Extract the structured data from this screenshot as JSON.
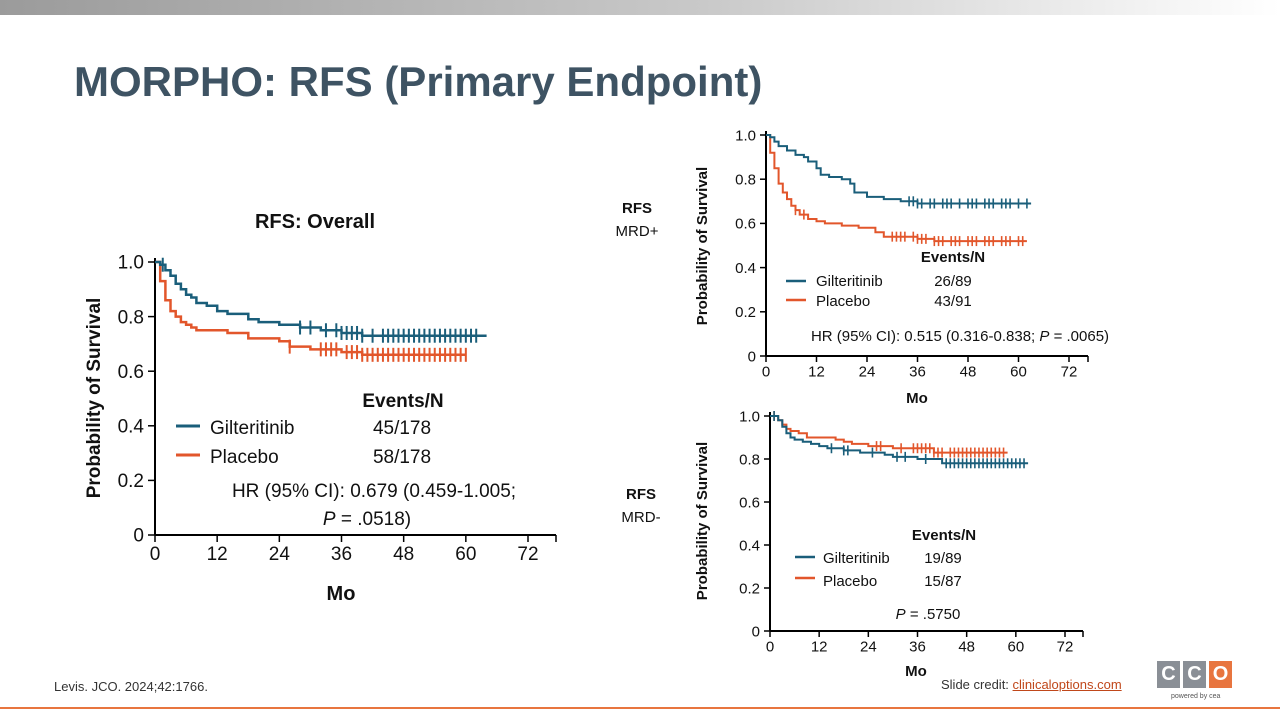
{
  "header": {
    "title": "MORPHO: RFS (Primary Endpoint)"
  },
  "footer": {
    "citation": "Levis. JCO. 2024;42:1766.",
    "credit_prefix": "Slide credit: ",
    "credit_link": "clinicaloptions.com",
    "logo_letters": [
      "C",
      "C",
      "O"
    ],
    "logo_tagline": "powered by cea"
  },
  "colors": {
    "gilteritinib": "#1a5e7a",
    "placebo": "#e2562b",
    "title": "#3e5363",
    "logo_box": "#8a8f96",
    "logo_accent": "#e8753f"
  },
  "side_labels": {
    "mrd_pos": {
      "line1": "RFS",
      "line2": "MRD+"
    },
    "mrd_neg": {
      "line1": "RFS",
      "line2": "MRD-"
    }
  },
  "chart_data": [
    {
      "type": "line",
      "title": "RFS: Overall",
      "xlabel": "Mo",
      "ylabel": "Probability of Survival",
      "xlim": [
        0,
        72
      ],
      "ylim": [
        0,
        1.0
      ],
      "xticks": [
        "0",
        "12",
        "24",
        "36",
        "48",
        "60",
        "72"
      ],
      "yticks": [
        "0",
        "0.2",
        "0.4",
        "0.6",
        "0.8",
        "1.0"
      ],
      "legend_title": "Events/N",
      "series": [
        {
          "name": "Gilteritinib",
          "events": "45/178",
          "x": [
            0,
            1,
            2,
            3,
            4,
            5,
            6,
            7,
            8,
            10,
            12,
            14,
            18,
            20,
            24,
            28,
            32,
            36,
            40,
            44,
            50,
            56,
            64
          ],
          "y": [
            1.0,
            0.99,
            0.97,
            0.95,
            0.92,
            0.9,
            0.88,
            0.87,
            0.85,
            0.84,
            0.82,
            0.81,
            0.79,
            0.78,
            0.77,
            0.76,
            0.75,
            0.74,
            0.73,
            0.73,
            0.73,
            0.73,
            0.73
          ],
          "censor_x": [
            1.5,
            28,
            30,
            33,
            35,
            36,
            37,
            38,
            39,
            40,
            42,
            44,
            45,
            46,
            47,
            48,
            49,
            50,
            51,
            52,
            53,
            54,
            55,
            56,
            57,
            58,
            59,
            60,
            61,
            62
          ]
        },
        {
          "name": "Placebo",
          "events": "58/178",
          "x": [
            0,
            1,
            2,
            3,
            4,
            5,
            6,
            7,
            8,
            10,
            14,
            18,
            24,
            26,
            30,
            36,
            40,
            44,
            50,
            56,
            60
          ],
          "y": [
            1.0,
            0.93,
            0.86,
            0.82,
            0.8,
            0.78,
            0.77,
            0.76,
            0.75,
            0.75,
            0.74,
            0.72,
            0.71,
            0.69,
            0.68,
            0.67,
            0.66,
            0.66,
            0.66,
            0.66,
            0.66
          ],
          "censor_x": [
            26,
            32,
            33,
            34,
            35,
            37,
            38,
            39,
            40,
            41,
            42,
            43,
            44,
            45,
            46,
            47,
            48,
            49,
            50,
            51,
            52,
            53,
            54,
            55,
            56,
            57,
            58,
            59,
            60
          ]
        }
      ],
      "annotation": {
        "hr_prefix": "HR (95% CI): 0.679 (0.459-1.005;",
        "p_label": "P",
        "p_value": " = .0518)"
      }
    },
    {
      "type": "line",
      "title": "",
      "xlabel": "Mo",
      "ylabel": "Probability of Survival",
      "xlim": [
        0,
        72
      ],
      "ylim": [
        0,
        1.0
      ],
      "xticks": [
        "0",
        "12",
        "24",
        "36",
        "48",
        "60",
        "72"
      ],
      "yticks": [
        "0",
        "0.2",
        "0.4",
        "0.6",
        "0.8",
        "1.0"
      ],
      "legend_title": "Events/N",
      "series": [
        {
          "name": "Gilteritinib",
          "events": "26/89",
          "x": [
            0,
            1,
            2,
            3,
            5,
            7,
            9,
            10,
            12,
            13,
            15,
            18,
            20,
            21,
            24,
            28,
            32,
            36,
            42,
            50,
            60,
            63
          ],
          "y": [
            1.0,
            0.99,
            0.97,
            0.95,
            0.93,
            0.91,
            0.9,
            0.88,
            0.85,
            0.82,
            0.81,
            0.8,
            0.78,
            0.74,
            0.72,
            0.71,
            0.7,
            0.69,
            0.69,
            0.69,
            0.69,
            0.69
          ],
          "censor_x": [
            34,
            35,
            36,
            37,
            39,
            40,
            42,
            43,
            44,
            46,
            48,
            49,
            50,
            52,
            53,
            54,
            56,
            57,
            58,
            60,
            62
          ]
        },
        {
          "name": "Placebo",
          "events": "43/91",
          "x": [
            0,
            1,
            2,
            3,
            4,
            5,
            6,
            7,
            8,
            10,
            12,
            14,
            18,
            22,
            26,
            28,
            36,
            40,
            50,
            60,
            62
          ],
          "y": [
            1.0,
            0.92,
            0.85,
            0.78,
            0.74,
            0.71,
            0.68,
            0.66,
            0.64,
            0.62,
            0.61,
            0.6,
            0.59,
            0.58,
            0.56,
            0.54,
            0.53,
            0.52,
            0.52,
            0.52,
            0.52
          ],
          "censor_x": [
            7,
            9,
            30,
            31,
            32,
            33,
            35,
            36,
            37,
            38,
            40,
            41,
            42,
            44,
            45,
            46,
            48,
            49,
            50,
            52,
            53,
            54,
            56,
            57,
            58,
            60,
            61
          ]
        }
      ],
      "annotation": {
        "hr_prefix": "HR (95% CI): 0.515 (0.316-0.838; ",
        "p_label": "P",
        "p_value": " = .0065)"
      }
    },
    {
      "type": "line",
      "title": "",
      "xlabel": "Mo",
      "ylabel": "Probability of Survival",
      "xlim": [
        0,
        72
      ],
      "ylim": [
        0,
        1.0
      ],
      "xticks": [
        "0",
        "12",
        "24",
        "36",
        "48",
        "60",
        "72"
      ],
      "yticks": [
        "0",
        "0.2",
        "0.4",
        "0.6",
        "0.8",
        "1.0"
      ],
      "legend_title": "Events/N",
      "series": [
        {
          "name": "Gilteritinib",
          "events": "19/89",
          "x": [
            0,
            2,
            3,
            4,
            5,
            6,
            8,
            10,
            12,
            14,
            18,
            22,
            28,
            30,
            36,
            42,
            50,
            63
          ],
          "y": [
            1.0,
            0.98,
            0.95,
            0.92,
            0.9,
            0.89,
            0.88,
            0.87,
            0.86,
            0.85,
            0.84,
            0.83,
            0.82,
            0.81,
            0.8,
            0.78,
            0.78,
            0.78
          ],
          "censor_x": [
            1,
            15,
            18,
            19,
            25,
            31,
            33,
            38,
            43,
            44,
            45,
            46,
            47,
            48,
            49,
            50,
            51,
            52,
            53,
            54,
            55,
            56,
            57,
            58,
            59,
            60,
            61,
            62
          ]
        },
        {
          "name": "Placebo",
          "events": "15/87",
          "x": [
            0,
            2,
            3,
            4,
            5,
            7,
            9,
            13,
            16,
            18,
            20,
            24,
            30,
            40,
            50,
            58
          ],
          "y": [
            1.0,
            0.98,
            0.96,
            0.94,
            0.93,
            0.92,
            0.9,
            0.9,
            0.89,
            0.88,
            0.87,
            0.86,
            0.85,
            0.83,
            0.83,
            0.83
          ],
          "censor_x": [
            1,
            26,
            27,
            32,
            35,
            36,
            37,
            38,
            39,
            40,
            41,
            42,
            44,
            45,
            46,
            47,
            48,
            49,
            50,
            51,
            52,
            53,
            54,
            55,
            56,
            57
          ]
        }
      ],
      "annotation": {
        "hr_prefix": "",
        "p_label": "P",
        "p_value": " = .5750"
      }
    }
  ]
}
